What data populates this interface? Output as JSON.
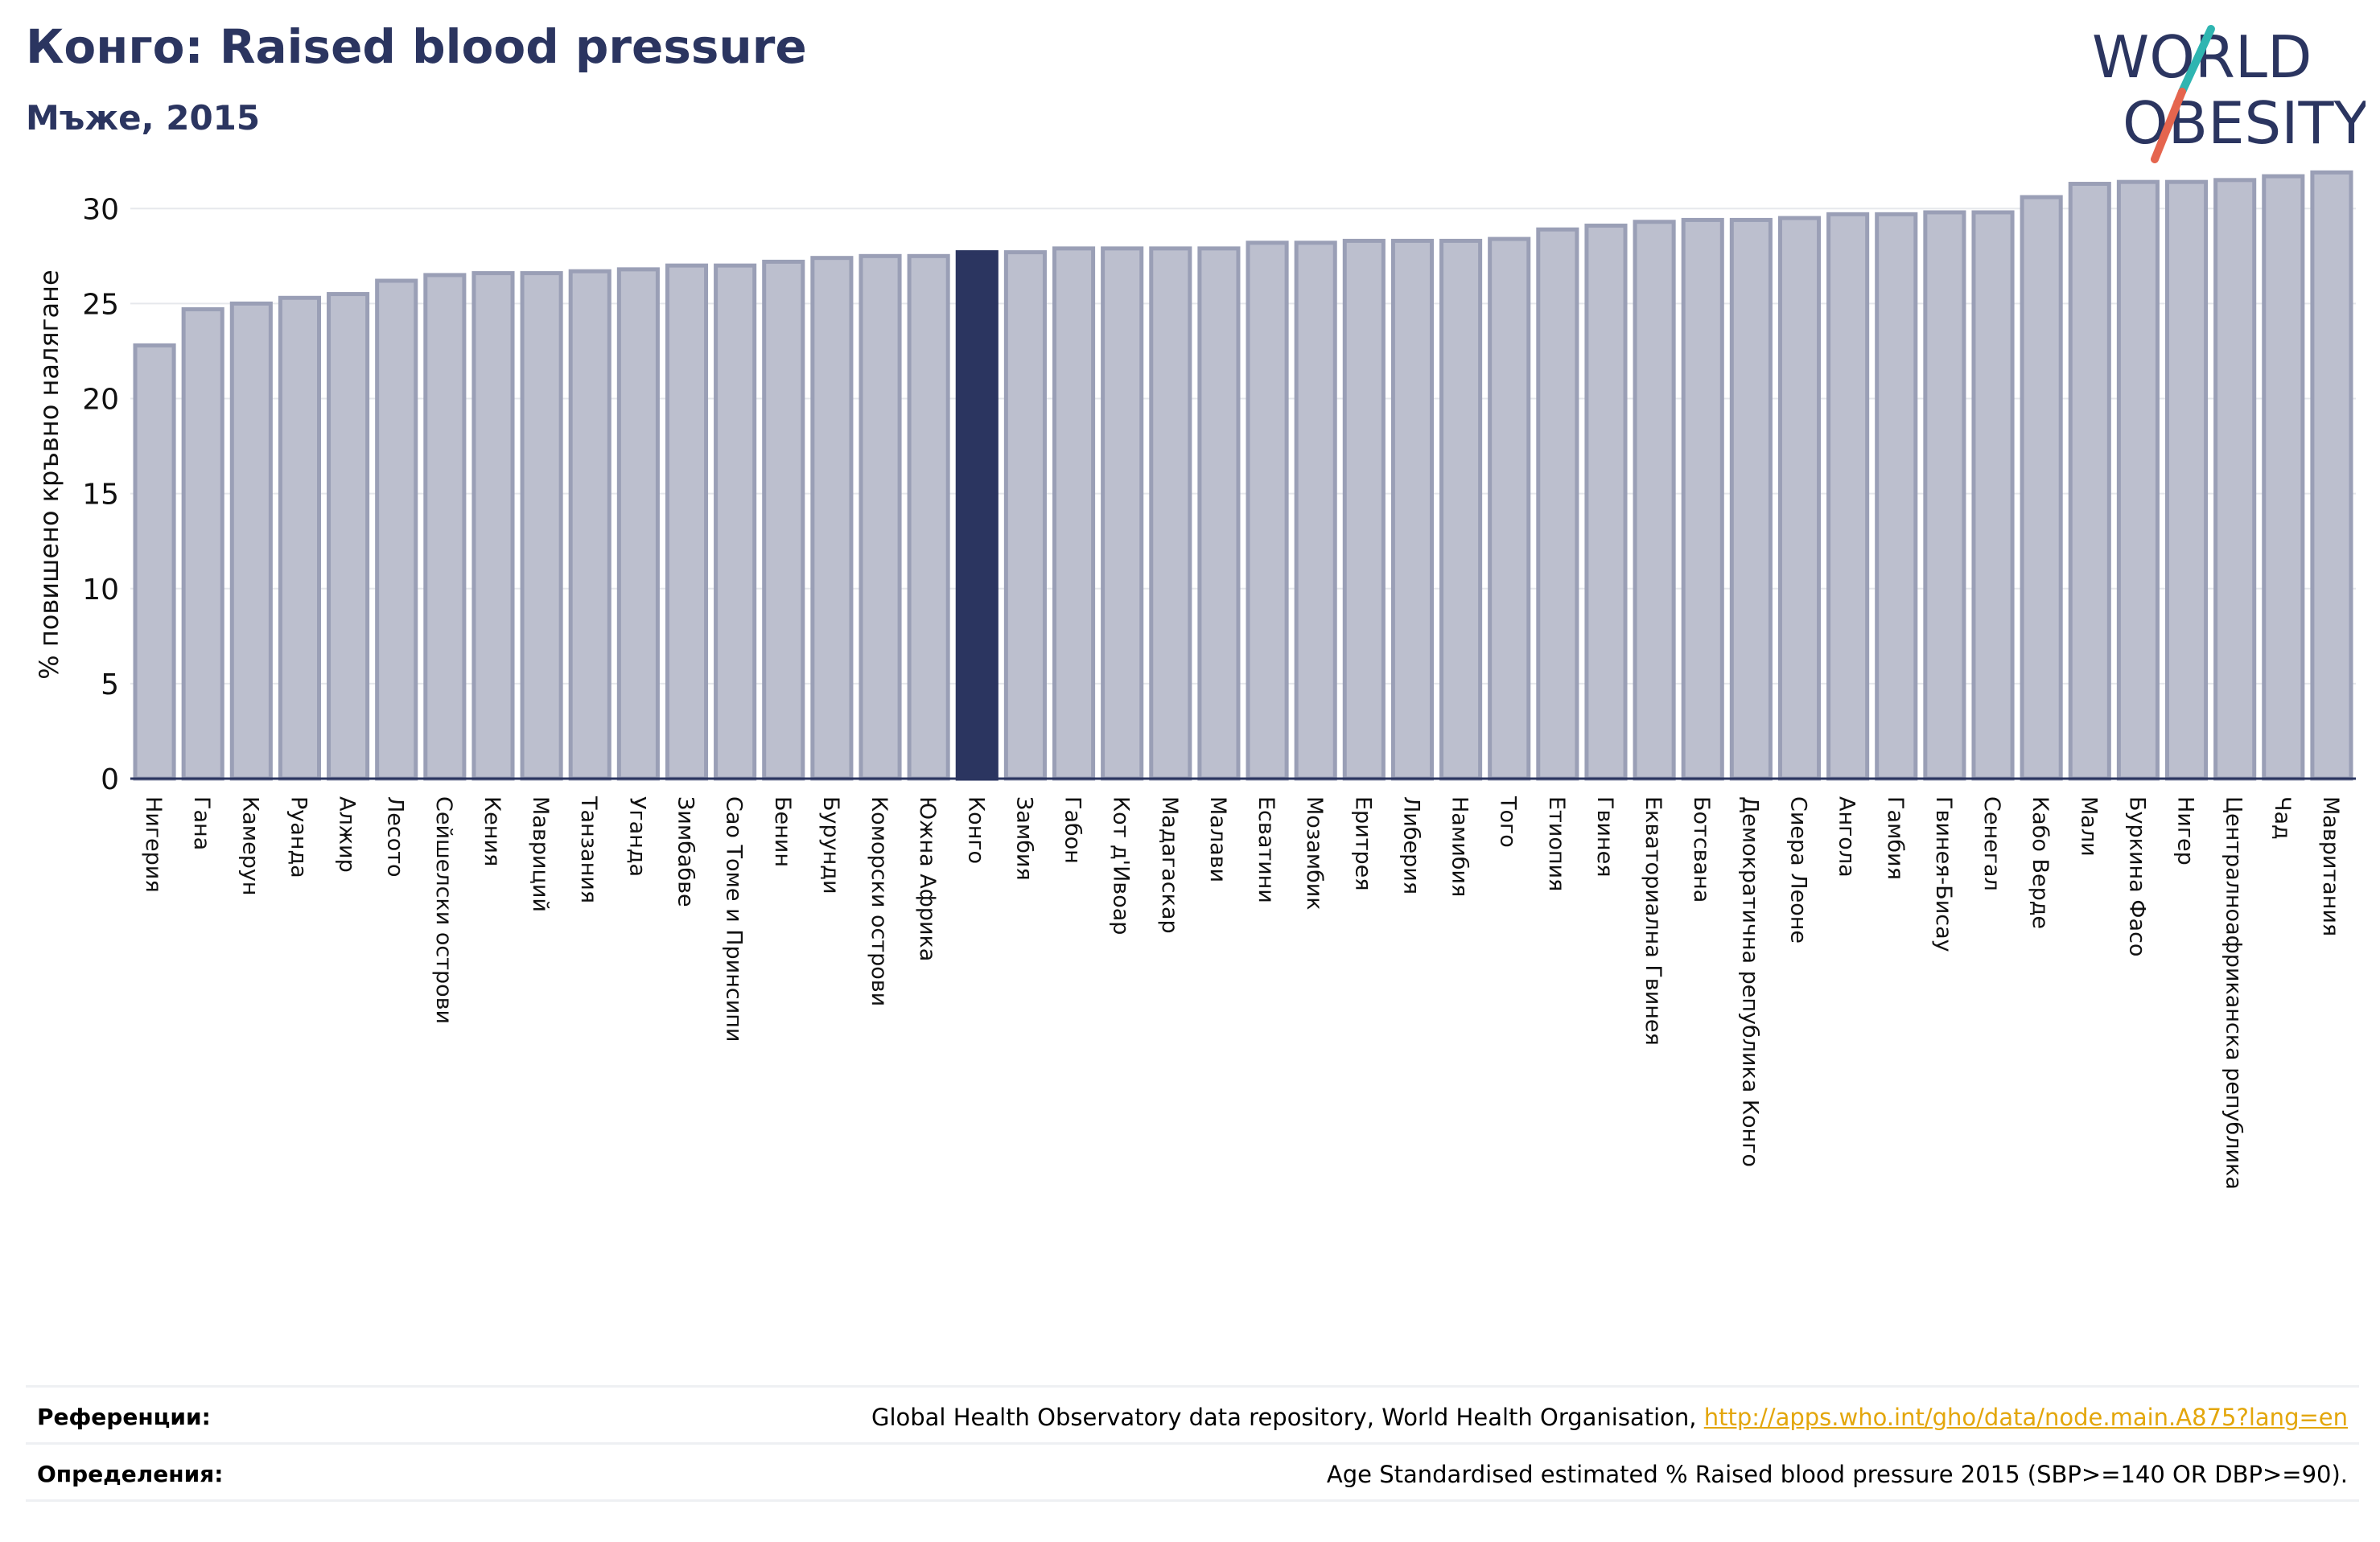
{
  "header": {
    "title": "Конго: Raised blood pressure",
    "subtitle": "Мъже, 2015"
  },
  "logo": {
    "line1": "WORLD",
    "line2": "OBESITY",
    "text_color": "#2b3560",
    "slash_top_color": "#2fb5b1",
    "slash_bottom_color": "#e5654e"
  },
  "colors": {
    "bar_fill": "#bcbfce",
    "bar_stroke": "#9a9fb6",
    "highlight": "#2b3560",
    "grid": "#e6e8ec",
    "axis": "#2b3560"
  },
  "chart_data": {
    "type": "bar",
    "ylabel": "% повишено кръвно налягане",
    "ylim": [
      0,
      32
    ],
    "yticks": [
      0,
      5,
      10,
      15,
      20,
      25,
      30
    ],
    "grid": true,
    "highlight_category": "Конго",
    "categories": [
      "Нигерия",
      "Гана",
      "Камерун",
      "Руанда",
      "Алжир",
      "Лесото",
      "Сейшелски острови",
      "Кения",
      "Мавриций",
      "Танзания",
      "Уганда",
      "Зимбабве",
      "Сао Томе и Принсипи",
      "Бенин",
      "Бурунди",
      "Коморски острови",
      "Южна Африка",
      "Конго",
      "Замбия",
      "Габон",
      "Кот д'Ивоар",
      "Мадагаскар",
      "Малави",
      "Есватини",
      "Мозамбик",
      "Еритрея",
      "Либерия",
      "Намибия",
      "Того",
      "Етиопия",
      "Гвинея",
      "Екваториална Гвинея",
      "Ботсвана",
      "Демократична република Конго",
      "Сиера Леоне",
      "Ангола",
      "Гамбия",
      "Гвинея-Бисау",
      "Сенегал",
      "Кабо Верде",
      "Мали",
      "Буркина Фасо",
      "Нигер",
      "Централноафриканска република",
      "Чад",
      "Мавритания"
    ],
    "values": [
      22.8,
      24.7,
      25.0,
      25.3,
      25.5,
      26.2,
      26.5,
      26.6,
      26.6,
      26.7,
      26.8,
      27.0,
      27.0,
      27.2,
      27.4,
      27.5,
      27.5,
      27.7,
      27.7,
      27.9,
      27.9,
      27.9,
      27.9,
      28.2,
      28.2,
      28.3,
      28.3,
      28.3,
      28.4,
      28.9,
      29.1,
      29.3,
      29.4,
      29.4,
      29.5,
      29.7,
      29.7,
      29.8,
      29.8,
      30.6,
      31.3,
      31.4,
      31.4,
      31.5,
      31.7,
      31.9
    ]
  },
  "footer": {
    "references_label": "Референции:",
    "references_text": "Global Health Observatory data repository, World Health Organisation, ",
    "references_link": "http://apps.who.int/gho/data/node.main.A875?lang=en",
    "definitions_label": "Определения:",
    "definitions_text": "Age Standardised estimated % Raised blood pressure 2015 (SBP>=140 OR DBP>=90)."
  }
}
